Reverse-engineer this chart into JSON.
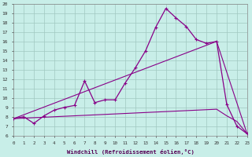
{
  "xlabel": "Windchill (Refroidissement éolien,°C)",
  "bg_color": "#c8eee8",
  "grid_color": "#a0c8c0",
  "line_color": "#880088",
  "xmin": 0,
  "xmax": 23,
  "ymin": 6,
  "ymax": 20,
  "series1_x": [
    0,
    1,
    2,
    3,
    4,
    5,
    6,
    7,
    8,
    9,
    10,
    11,
    12,
    13,
    14,
    15,
    16,
    17,
    18,
    19,
    20,
    21,
    22,
    23
  ],
  "series1_y": [
    7.8,
    8.0,
    7.3,
    8.1,
    8.7,
    9.0,
    9.2,
    11.8,
    9.5,
    9.8,
    9.8,
    11.6,
    13.2,
    15.0,
    17.5,
    19.5,
    18.5,
    17.6,
    16.2,
    15.8,
    16.0,
    9.3,
    7.0,
    6.2
  ],
  "series2_x": [
    0,
    1,
    2,
    3,
    4,
    5,
    6,
    7,
    8,
    9,
    10,
    11,
    12,
    13,
    14,
    15,
    16,
    17,
    18,
    19,
    20,
    21,
    22,
    23
  ],
  "series2_y": [
    7.8,
    7.85,
    7.9,
    7.95,
    8.0,
    8.05,
    8.1,
    8.15,
    8.2,
    8.25,
    8.3,
    8.35,
    8.4,
    8.45,
    8.5,
    8.55,
    8.6,
    8.65,
    8.7,
    8.75,
    8.8,
    8.1,
    7.5,
    6.2
  ],
  "series3_x": [
    0,
    20,
    23
  ],
  "series3_y": [
    7.8,
    16.0,
    6.2
  ],
  "yticks": [
    6,
    7,
    8,
    9,
    10,
    11,
    12,
    13,
    14,
    15,
    16,
    17,
    18,
    19,
    20
  ]
}
